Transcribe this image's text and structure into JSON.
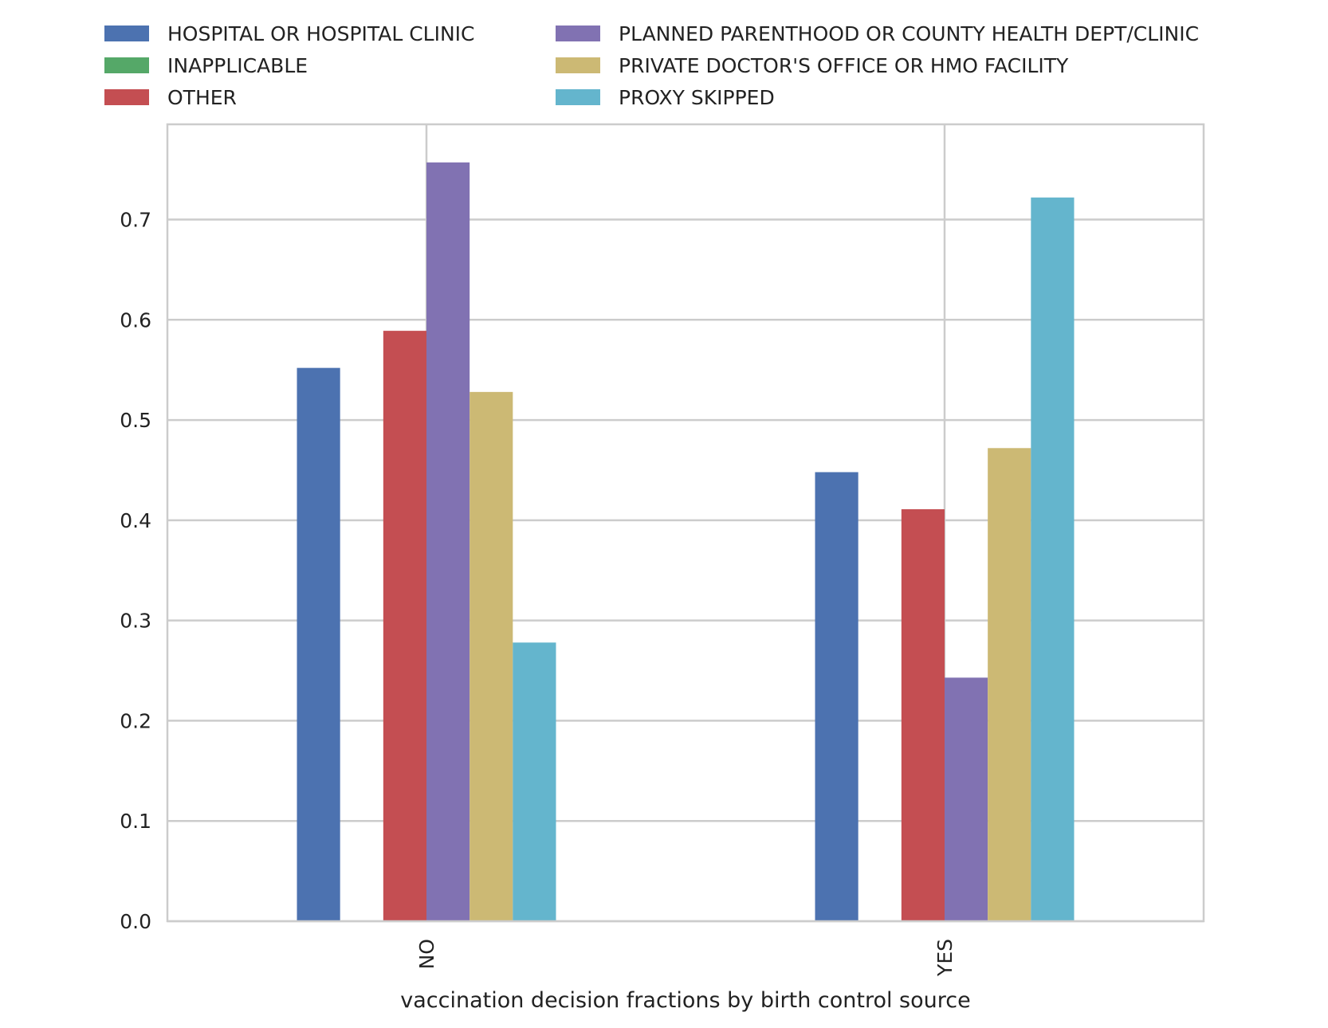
{
  "chart_data": {
    "type": "bar",
    "xlabel": "vaccination decision fractions by birth control source",
    "ylabel": "",
    "categories": [
      "NO",
      "YES"
    ],
    "ylim": [
      0,
      0.795
    ],
    "yticks": [
      "0.0",
      "0.1",
      "0.2",
      "0.3",
      "0.4",
      "0.5",
      "0.6",
      "0.7"
    ],
    "grid": true,
    "legend_position": "top, outside plot, two columns",
    "series": [
      {
        "name": "HOSPITAL OR HOSPITAL CLINIC",
        "color": "#4c72b0",
        "values": [
          0.552,
          0.448
        ]
      },
      {
        "name": "INAPPLICABLE",
        "color": "#55a868",
        "values": [
          0,
          0
        ]
      },
      {
        "name": "OTHER",
        "color": "#c44e52",
        "values": [
          0.589,
          0.411
        ]
      },
      {
        "name": "PLANNED PARENTHOOD OR COUNTY HEALTH DEPT/CLINIC",
        "color": "#8172b2",
        "values": [
          0.757,
          0.243
        ]
      },
      {
        "name": "PRIVATE DOCTOR'S OFFICE OR HMO FACILITY",
        "color": "#ccb974",
        "values": [
          0.528,
          0.472
        ]
      },
      {
        "name": "PROXY SKIPPED",
        "color": "#64b5cd",
        "values": [
          0.278,
          0.722
        ]
      }
    ]
  }
}
